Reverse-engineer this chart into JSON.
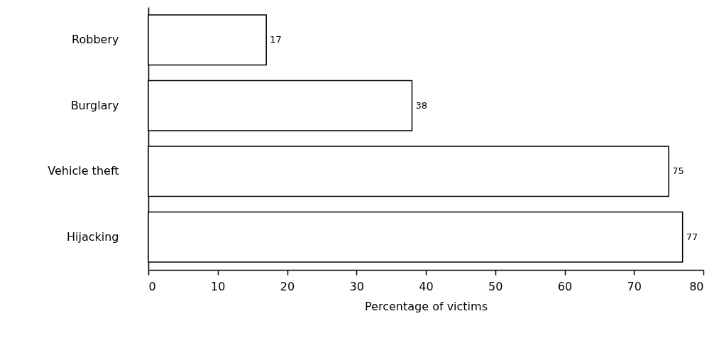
{
  "chart_data": {
    "type": "bar",
    "orientation": "horizontal",
    "categories": [
      "Robbery",
      "Burglary",
      "Vehicle theft",
      "Hijacking"
    ],
    "values": [
      17,
      38,
      75,
      77
    ],
    "color": "#ffffff",
    "xlabel": "Percentage of victims",
    "xlim": [
      0,
      80
    ],
    "xticks": [
      0,
      10,
      20,
      30,
      40,
      50,
      60,
      70,
      80
    ],
    "data_labels": true,
    "grid": false
  }
}
